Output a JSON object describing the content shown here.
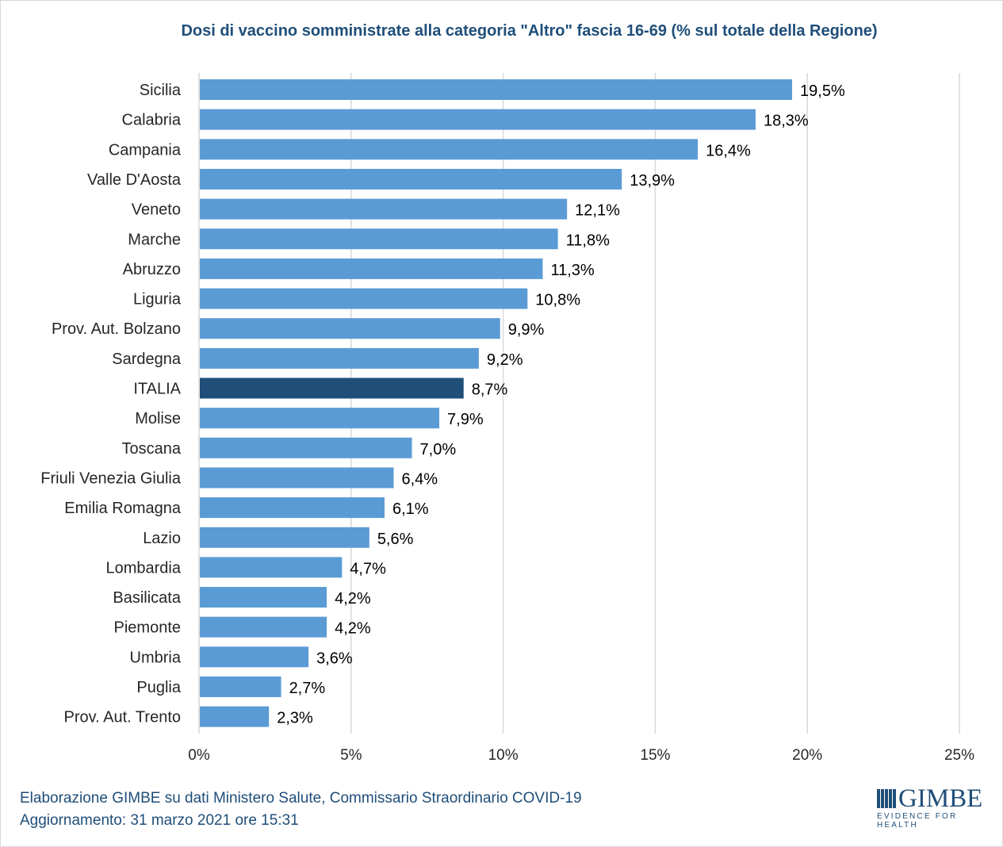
{
  "chart_data": {
    "type": "bar",
    "orientation": "horizontal",
    "title": "Dosi di vaccino somministrate alla categoria \"Altro\" fascia 16-69 (% sul totale della Regione)",
    "xlabel": "",
    "ylabel": "",
    "xlim": [
      0,
      25
    ],
    "x_ticks": [
      0,
      5,
      10,
      15,
      20,
      25
    ],
    "x_tick_labels": [
      "0%",
      "5%",
      "10%",
      "15%",
      "20%",
      "25%"
    ],
    "grid": true,
    "legend": "none",
    "categories": [
      "Sicilia",
      "Calabria",
      "Campania",
      "Valle D'Aosta",
      "Veneto",
      "Marche",
      "Abruzzo",
      "Liguria",
      "Prov. Aut. Bolzano",
      "Sardegna",
      "ITALIA",
      "Molise",
      "Toscana",
      "Friuli Venezia Giulia",
      "Emilia Romagna",
      "Lazio",
      "Lombardia",
      "Basilicata",
      "Piemonte",
      "Umbria",
      "Puglia",
      "Prov. Aut. Trento"
    ],
    "values": [
      19.5,
      18.3,
      16.4,
      13.9,
      12.1,
      11.8,
      11.3,
      10.8,
      9.9,
      9.2,
      8.7,
      7.9,
      7.0,
      6.4,
      6.1,
      5.6,
      4.7,
      4.2,
      4.2,
      3.6,
      2.7,
      2.3
    ],
    "value_labels": [
      "19,5%",
      "18,3%",
      "16,4%",
      "13,9%",
      "12,1%",
      "11,8%",
      "11,3%",
      "10,8%",
      "9,9%",
      "9,2%",
      "8,7%",
      "7,9%",
      "7,0%",
      "6,4%",
      "6,1%",
      "5,6%",
      "4,7%",
      "4,2%",
      "4,2%",
      "3,6%",
      "2,7%",
      "2,3%"
    ],
    "highlight_category": "ITALIA",
    "colors": {
      "bar": "#5b9bd5",
      "highlight": "#1f4e79",
      "grid": "#d9d9d9"
    }
  },
  "footer": {
    "source": "Elaborazione GIMBE su dati Ministero Salute, Commissario Straordinario COVID-19",
    "updated": "Aggiornamento: 31 marzo 2021 ore 15:31"
  },
  "logo": {
    "name": "GIMBE",
    "tagline": "EVIDENCE FOR HEALTH"
  }
}
